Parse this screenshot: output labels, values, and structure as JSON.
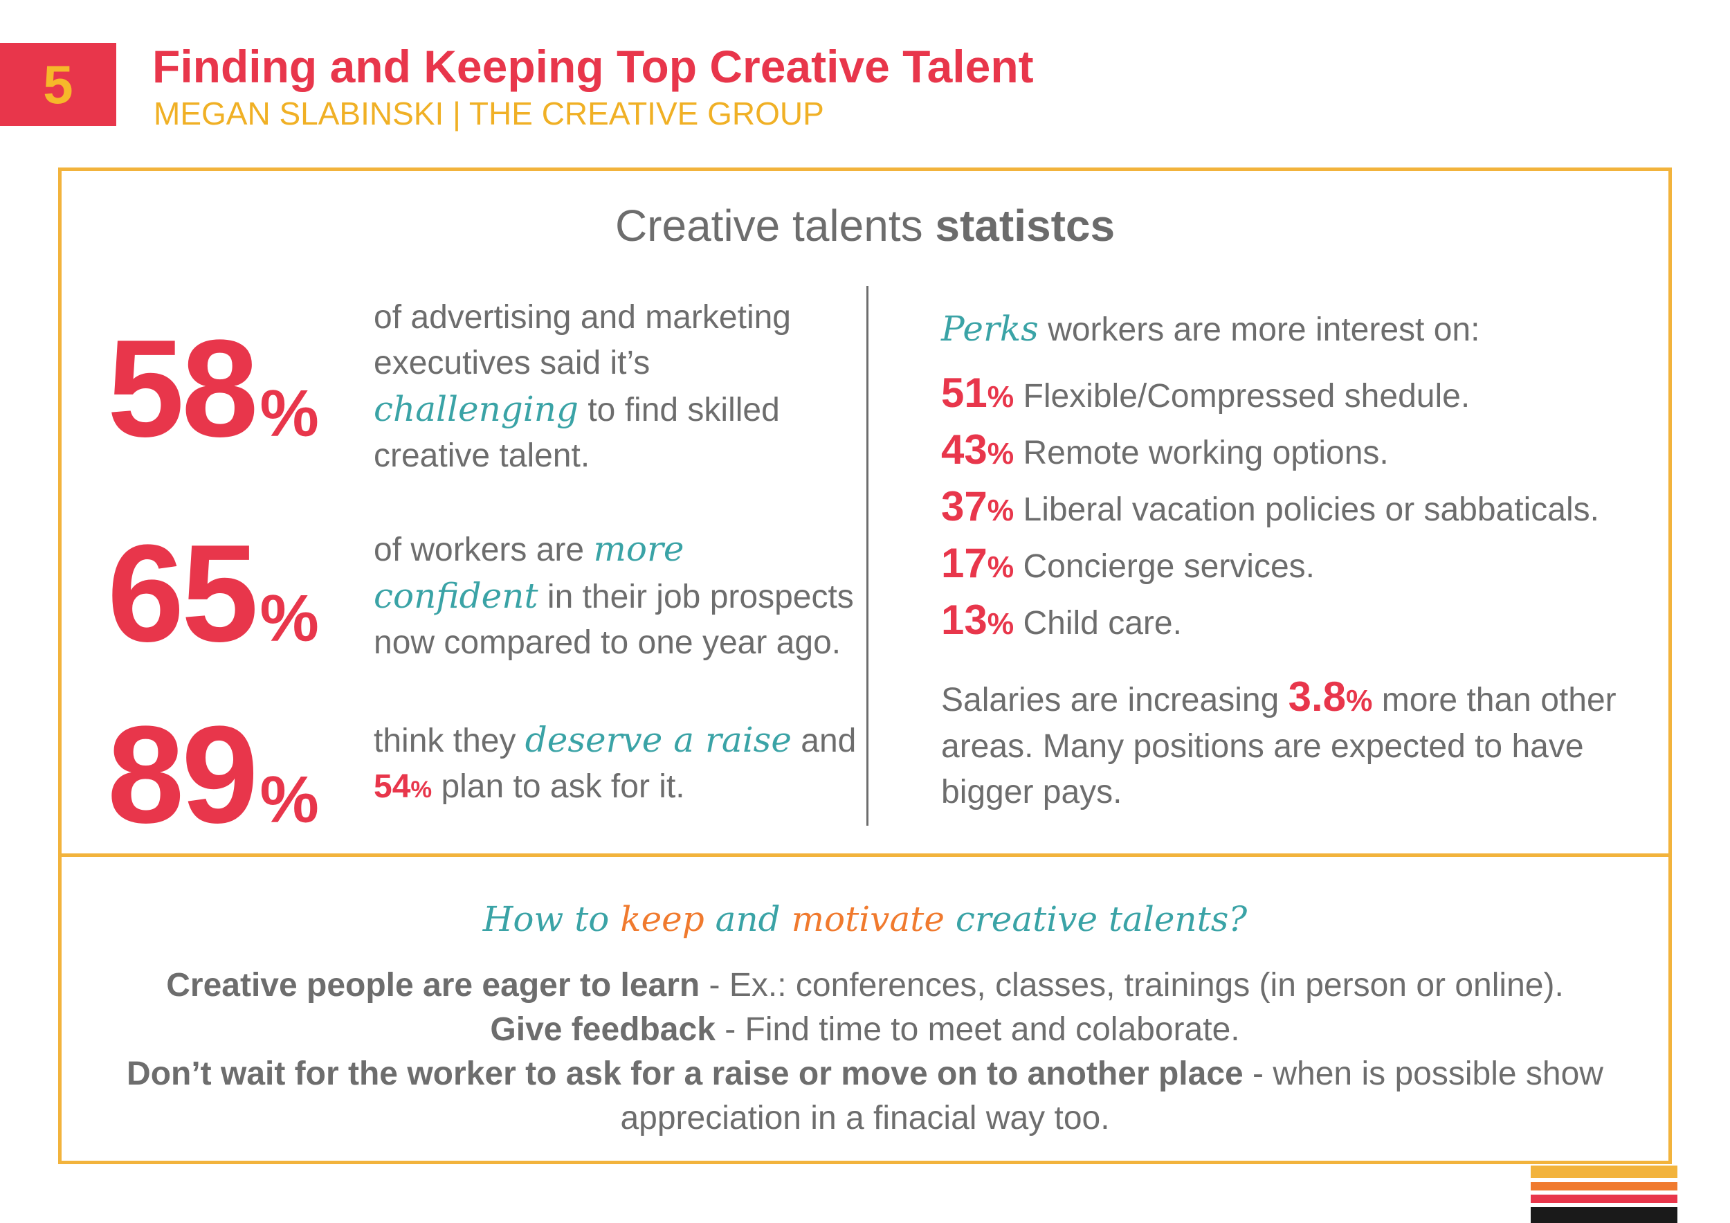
{
  "header": {
    "number": "5",
    "title": "Finding and Keeping Top Creative Talent",
    "subtitle": "MEGAN SLABINSKI | THE CREATIVE GROUP"
  },
  "stats_heading": {
    "normal": "Creative talents ",
    "bold": "statistcs"
  },
  "left_stats": [
    {
      "value": "58",
      "unit": "%",
      "text_before": "of advertising and marketing executives said it’s ",
      "highlight": "challenging",
      "text_after": " to find skilled creative talent."
    },
    {
      "value": "65",
      "unit": "%",
      "text_before": "of workers are ",
      "highlight": "more confident",
      "text_after": " in their job prospects now compared to one year ago."
    },
    {
      "value": "89",
      "unit": "%",
      "text_before": "think they ",
      "highlight": "deserve a raise",
      "text_mid": " and ",
      "inline_value": "54",
      "inline_unit": "%",
      "text_after": " plan to ask for it."
    }
  ],
  "perks": {
    "intro_highlight": "Perks",
    "intro_text": " workers are more interest on:",
    "items": [
      {
        "value": "51",
        "unit": "%",
        "label": " Flexible/Compressed shedule."
      },
      {
        "value": "43",
        "unit": "%",
        "label": " Remote working options."
      },
      {
        "value": "37",
        "unit": "%",
        "label": " Liberal vacation policies or sabbaticals."
      },
      {
        "value": "17",
        "unit": "%",
        "label": " Concierge services."
      },
      {
        "value": "13",
        "unit": "%",
        "label": " Child care."
      }
    ]
  },
  "salary": {
    "before": "Salaries are increasing ",
    "value": "3.8",
    "unit": "%",
    "after": " more than other areas. Many positions are expected to have bigger pays."
  },
  "keep": {
    "heading_parts": [
      "How to ",
      "keep",
      " and ",
      "motivate",
      " creative talents?"
    ],
    "items": [
      {
        "bold": "Creative people are eager to learn",
        "text": " - Ex.: conferences, classes, trainings (in person or online)."
      },
      {
        "bold": "Give feedback",
        "text": " - Find time to meet and colaborate."
      },
      {
        "bold": "Don’t wait for the worker to ask for a raise or move on to another place",
        "text": " - when is possible show appreciation in a finacial way too."
      }
    ]
  },
  "colors": {
    "red": "#e8364b",
    "yellow": "#f2b33c",
    "teal": "#3aa3a6",
    "orange": "#f07a2e",
    "gray": "#6d6d6d",
    "black": "#1a1a1a"
  }
}
